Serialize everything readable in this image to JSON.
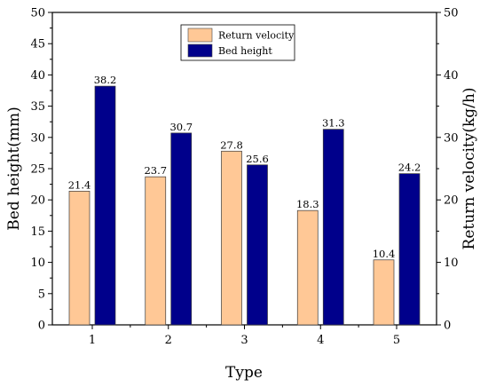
{
  "chart_data": {
    "type": "bar",
    "categories": [
      "1",
      "2",
      "3",
      "4",
      "5"
    ],
    "series": [
      {
        "name": "Return velocity",
        "color": "#FFC896",
        "values": [
          21.4,
          23.7,
          27.8,
          18.3,
          10.4
        ]
      },
      {
        "name": "Bed height",
        "color": "#00008B",
        "values": [
          38.2,
          30.7,
          25.6,
          31.3,
          24.2
        ]
      }
    ],
    "xlabel": "Type",
    "ylabel_left": "Bed height(mm)",
    "ylabel_right": "Return velocity(kg/h)",
    "ylim": [
      0,
      50
    ],
    "ylim_right": [
      0,
      50
    ],
    "yticks": [
      0,
      5,
      10,
      15,
      20,
      25,
      30,
      35,
      40,
      45,
      50
    ],
    "yticks_right": [
      0,
      10,
      20,
      30,
      40,
      50
    ],
    "legend_position": "top-center",
    "grid": false
  }
}
